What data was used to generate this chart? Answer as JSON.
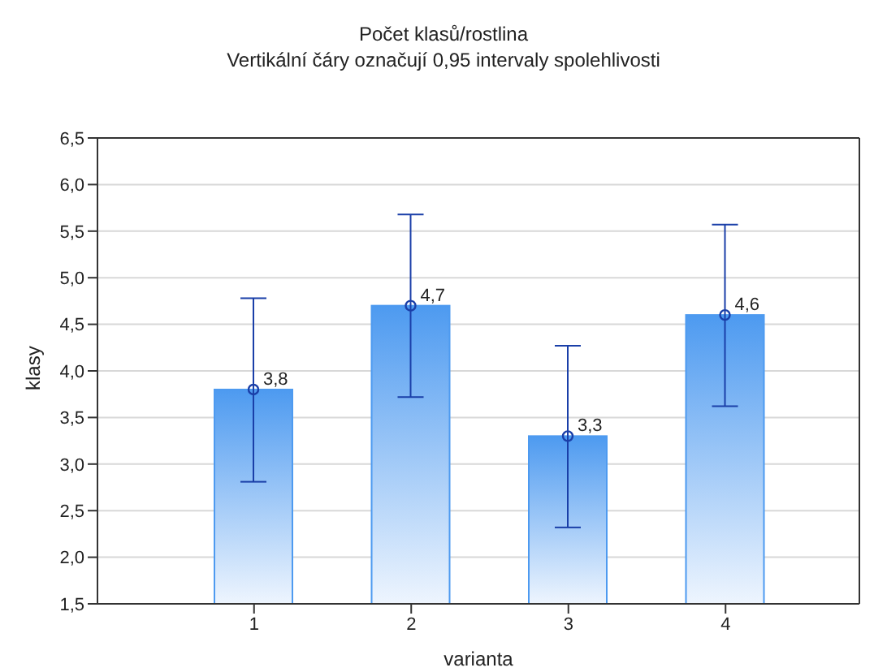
{
  "chart_data": {
    "type": "bar",
    "title": "Počet klasů/rostlina",
    "subtitle": "Vertikální čáry označují 0,95 intervaly spolehlivosti",
    "xlabel": "varianta",
    "ylabel": "klasy",
    "categories": [
      "1",
      "2",
      "3",
      "4"
    ],
    "values": [
      3.8,
      4.7,
      3.3,
      4.6
    ],
    "errors": [
      [
        2.81,
        4.78
      ],
      [
        3.72,
        5.68
      ],
      [
        2.32,
        4.27
      ],
      [
        3.62,
        5.57
      ]
    ],
    "value_labels": [
      "3,8",
      "4,7",
      "3,3",
      "4,6"
    ],
    "color": "#4d9af0",
    "marker": "circle",
    "grid": "y",
    "legend": false,
    "ylim": [
      1.5,
      6.5
    ],
    "yticks": [
      {
        "value": 1.5,
        "label": "1,5"
      },
      {
        "value": 2,
        "label": "2,0"
      },
      {
        "value": 2.5,
        "label": "2,5"
      },
      {
        "value": 3,
        "label": "3,0"
      },
      {
        "value": 3.5,
        "label": "3,5"
      },
      {
        "value": 4,
        "label": "4,0"
      },
      {
        "value": 4.5,
        "label": "4,5"
      },
      {
        "value": 5,
        "label": "5,0"
      },
      {
        "value": 5.5,
        "label": "5,5"
      },
      {
        "value": 6,
        "label": "6,0"
      },
      {
        "value": 6.5,
        "label": "6,5"
      }
    ]
  }
}
